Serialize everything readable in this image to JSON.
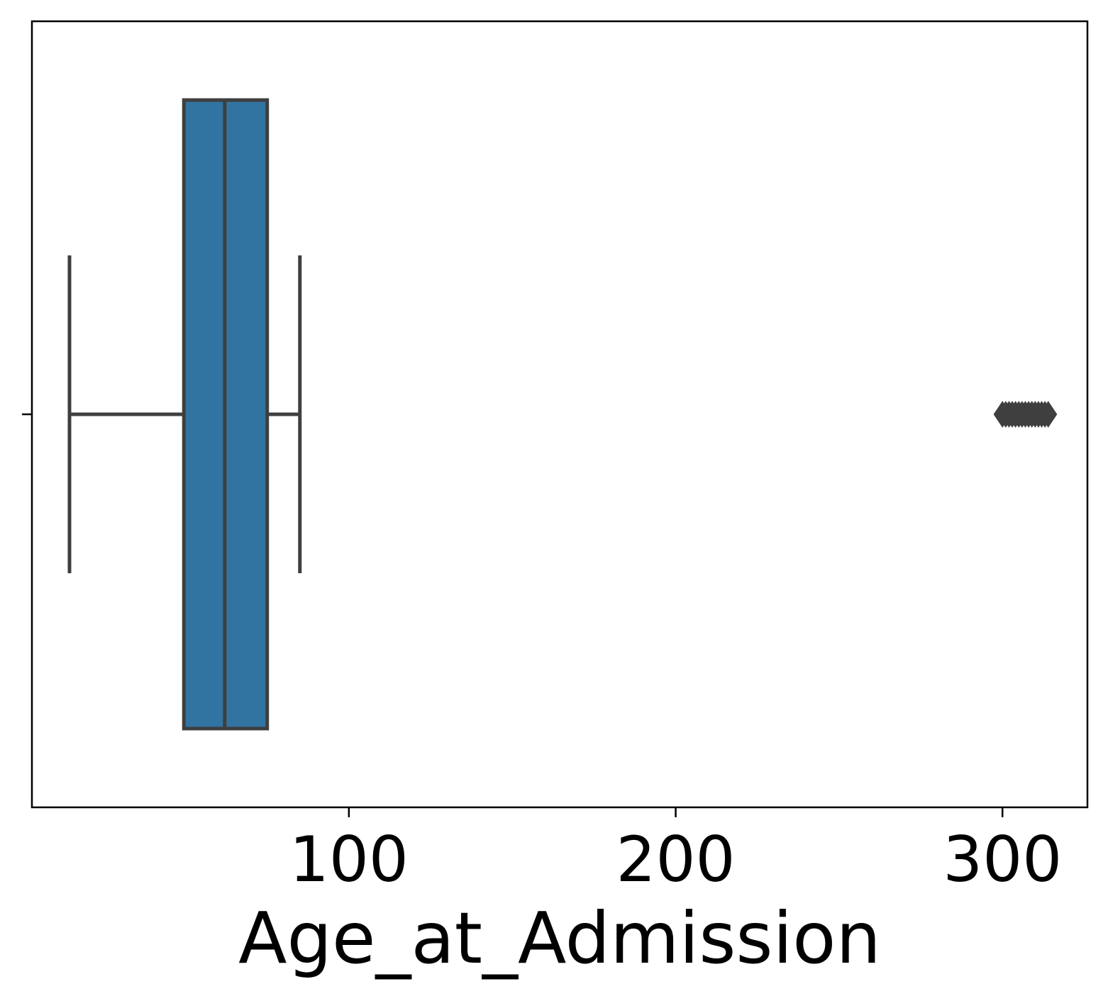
{
  "chart_data": {
    "type": "box",
    "orientation": "horizontal",
    "title": "",
    "xlabel": "Age_at_Admission",
    "ylabel": "",
    "xlim": [
      3,
      326
    ],
    "xticks": [
      100,
      200,
      300
    ],
    "xtick_labels": [
      "100",
      "200",
      "300"
    ],
    "grid": false,
    "legend": "none",
    "series": [
      {
        "whisker_low": 14.5,
        "q1": 49.5,
        "median": 62,
        "q3": 75,
        "whisker_high": 85,
        "outliers": [
          300,
          301,
          302,
          303,
          304,
          305,
          306,
          307,
          308,
          309,
          310,
          311,
          312,
          313,
          314
        ]
      }
    ],
    "colors": {
      "box_fill": "#3274a1",
      "line": "#3f3f3f",
      "axis": "#000000"
    }
  }
}
